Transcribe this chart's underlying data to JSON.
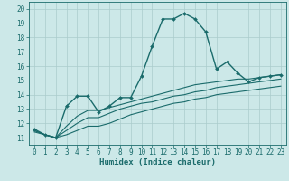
{
  "title": "",
  "xlabel": "Humidex (Indice chaleur)",
  "background_color": "#cce8e8",
  "grid_color": "#aacccc",
  "line_color": "#1a6b6b",
  "xlim": [
    -0.5,
    23.5
  ],
  "ylim": [
    10.5,
    20.5
  ],
  "yticks": [
    11,
    12,
    13,
    14,
    15,
    16,
    17,
    18,
    19,
    20
  ],
  "xticks": [
    0,
    1,
    2,
    3,
    4,
    5,
    6,
    7,
    8,
    9,
    10,
    11,
    12,
    13,
    14,
    15,
    16,
    17,
    18,
    19,
    20,
    21,
    22,
    23
  ],
  "series": [
    {
      "x": [
        0,
        1,
        2,
        3,
        4,
        5,
        6,
        7,
        8,
        9,
        10,
        11,
        12,
        13,
        14,
        15,
        16,
        17,
        18,
        19,
        20,
        21,
        22,
        23
      ],
      "y": [
        11.6,
        11.2,
        11.0,
        13.2,
        13.9,
        13.9,
        12.8,
        13.2,
        13.8,
        13.8,
        15.3,
        17.4,
        19.3,
        19.3,
        19.7,
        19.3,
        18.4,
        15.8,
        16.3,
        15.5,
        14.9,
        15.2,
        15.3,
        15.4
      ],
      "marker": "D",
      "markersize": 2.0,
      "linewidth": 1.0
    },
    {
      "x": [
        0,
        1,
        2,
        3,
        4,
        5,
        6,
        7,
        8,
        9,
        10,
        11,
        12,
        13,
        14,
        15,
        16,
        17,
        18,
        19,
        20,
        21,
        22,
        23
      ],
      "y": [
        11.5,
        11.2,
        11.0,
        11.8,
        12.5,
        12.9,
        12.9,
        13.1,
        13.3,
        13.5,
        13.7,
        13.9,
        14.1,
        14.3,
        14.5,
        14.7,
        14.8,
        14.9,
        15.0,
        15.1,
        15.1,
        15.2,
        15.3,
        15.4
      ],
      "marker": null,
      "linewidth": 0.8
    },
    {
      "x": [
        0,
        1,
        2,
        3,
        4,
        5,
        6,
        7,
        8,
        9,
        10,
        11,
        12,
        13,
        14,
        15,
        16,
        17,
        18,
        19,
        20,
        21,
        22,
        23
      ],
      "y": [
        11.5,
        11.2,
        11.0,
        11.5,
        12.0,
        12.4,
        12.4,
        12.7,
        13.0,
        13.2,
        13.4,
        13.5,
        13.7,
        13.9,
        14.0,
        14.2,
        14.3,
        14.5,
        14.6,
        14.7,
        14.8,
        14.9,
        15.0,
        15.1
      ],
      "marker": null,
      "linewidth": 0.8
    },
    {
      "x": [
        0,
        1,
        2,
        3,
        4,
        5,
        6,
        7,
        8,
        9,
        10,
        11,
        12,
        13,
        14,
        15,
        16,
        17,
        18,
        19,
        20,
        21,
        22,
        23
      ],
      "y": [
        11.4,
        11.2,
        11.0,
        11.2,
        11.5,
        11.8,
        11.8,
        12.0,
        12.3,
        12.6,
        12.8,
        13.0,
        13.2,
        13.4,
        13.5,
        13.7,
        13.8,
        14.0,
        14.1,
        14.2,
        14.3,
        14.4,
        14.5,
        14.6
      ],
      "marker": null,
      "linewidth": 0.8
    }
  ],
  "tick_fontsize": 5.5,
  "label_fontsize": 6.5
}
